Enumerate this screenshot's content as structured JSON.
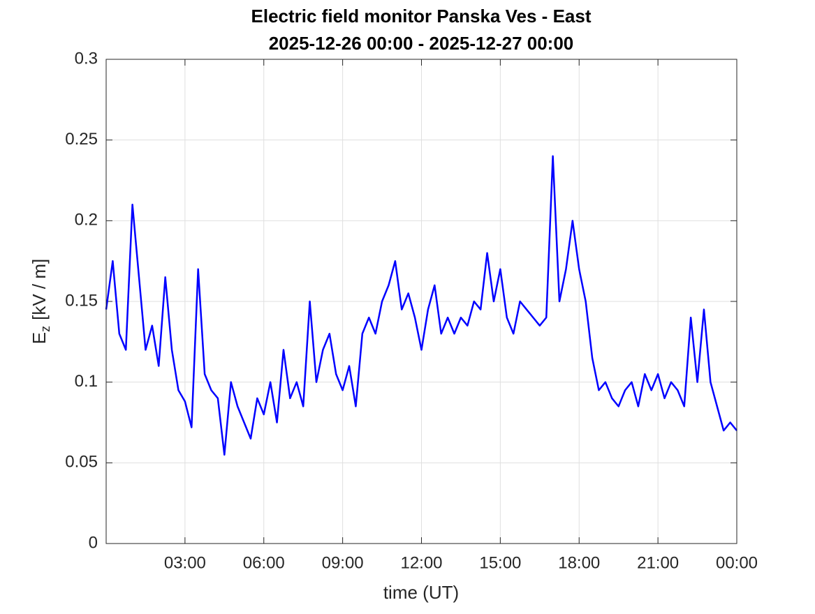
{
  "chart_data": {
    "type": "line",
    "title": [
      "Electric field monitor Panska Ves - East",
      "2025-12-26 00:00 - 2025-12-27 00:00"
    ],
    "xlabel": "time (UT)",
    "ylabel": {
      "main": "E",
      "subscript": "z",
      "unit": "[kV / m]"
    },
    "x": [
      0,
      0.25,
      0.5,
      0.75,
      1,
      1.25,
      1.5,
      1.75,
      2,
      2.25,
      2.5,
      2.75,
      3,
      3.25,
      3.5,
      3.75,
      4,
      4.25,
      4.5,
      4.75,
      5,
      5.25,
      5.5,
      5.75,
      6,
      6.25,
      6.5,
      6.75,
      7,
      7.25,
      7.5,
      7.75,
      8,
      8.25,
      8.5,
      8.75,
      9,
      9.25,
      9.5,
      9.75,
      10,
      10.25,
      10.5,
      10.75,
      11,
      11.25,
      11.5,
      11.75,
      12,
      12.25,
      12.5,
      12.75,
      13,
      13.25,
      13.5,
      13.75,
      14,
      14.25,
      14.5,
      14.75,
      15,
      15.25,
      15.5,
      15.75,
      16,
      16.25,
      16.5,
      16.75,
      17,
      17.25,
      17.5,
      17.75,
      18,
      18.25,
      18.5,
      18.75,
      19,
      19.25,
      19.5,
      19.75,
      20,
      20.25,
      20.5,
      20.75,
      21,
      21.25,
      21.5,
      21.75,
      22,
      22.25,
      22.5,
      22.75,
      23,
      23.25,
      23.5,
      23.75,
      24
    ],
    "series": [
      {
        "name": "Ez",
        "color": "#0000ff",
        "values": [
          0.145,
          0.175,
          0.13,
          0.12,
          0.21,
          0.165,
          0.12,
          0.135,
          0.11,
          0.165,
          0.12,
          0.095,
          0.088,
          0.072,
          0.17,
          0.105,
          0.095,
          0.09,
          0.055,
          0.1,
          0.085,
          0.075,
          0.065,
          0.09,
          0.08,
          0.1,
          0.075,
          0.12,
          0.09,
          0.1,
          0.085,
          0.15,
          0.1,
          0.12,
          0.13,
          0.105,
          0.095,
          0.11,
          0.085,
          0.13,
          0.14,
          0.13,
          0.15,
          0.16,
          0.175,
          0.145,
          0.155,
          0.14,
          0.12,
          0.145,
          0.16,
          0.13,
          0.14,
          0.13,
          0.14,
          0.135,
          0.15,
          0.145,
          0.18,
          0.15,
          0.17,
          0.14,
          0.13,
          0.15,
          0.145,
          0.14,
          0.135,
          0.14,
          0.24,
          0.15,
          0.17,
          0.2,
          0.17,
          0.15,
          0.115,
          0.095,
          0.1,
          0.09,
          0.085,
          0.095,
          0.1,
          0.085,
          0.105,
          0.095,
          0.105,
          0.09,
          0.1,
          0.095,
          0.085,
          0.14,
          0.1,
          0.145,
          0.1,
          0.085,
          0.07,
          0.075,
          0.07
        ]
      }
    ],
    "xlim": [
      0,
      24
    ],
    "xticks": [
      {
        "value": 3,
        "label": "03:00"
      },
      {
        "value": 6,
        "label": "06:00"
      },
      {
        "value": 9,
        "label": "09:00"
      },
      {
        "value": 12,
        "label": "12:00"
      },
      {
        "value": 15,
        "label": "15:00"
      },
      {
        "value": 18,
        "label": "18:00"
      },
      {
        "value": 21,
        "label": "21:00"
      },
      {
        "value": 24,
        "label": "00:00"
      }
    ],
    "ylim": [
      0,
      0.3
    ],
    "yticks": [
      0,
      0.05,
      0.1,
      0.15,
      0.2,
      0.25,
      0.3
    ],
    "grid": true
  }
}
